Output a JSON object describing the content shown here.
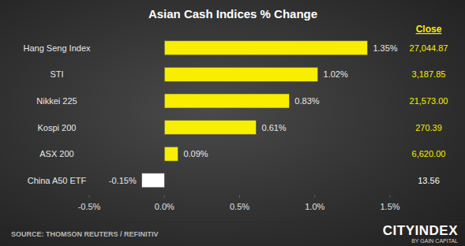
{
  "chart_data": {
    "type": "bar",
    "orientation": "horizontal",
    "title": "Asian Cash Indices % Change",
    "categories": [
      "Hang Seng Index",
      "STI",
      "Nikkei 225",
      "Kospi 200",
      "ASX 200",
      "China A50 ETF"
    ],
    "values": [
      1.35,
      1.02,
      0.83,
      0.61,
      0.09,
      -0.15
    ],
    "value_labels": [
      "1.35%",
      "1.02%",
      "0.83%",
      "0.61%",
      "0.09%",
      "-0.15%"
    ],
    "colors": [
      "#f7ee00",
      "#f7ee00",
      "#f7ee00",
      "#f7ee00",
      "#f7ee00",
      "#ffffff"
    ],
    "data_labels": true,
    "grid": false,
    "xlim": [
      -0.5,
      1.5
    ],
    "xticks": [
      {
        "value": -0.5,
        "label": "-0.5%"
      },
      {
        "value": 0,
        "label": "0.0%"
      },
      {
        "value": 0.5,
        "label": "0.5%"
      },
      {
        "value": 1,
        "label": "1.0%"
      },
      {
        "value": 1.5,
        "label": "1.5%"
      }
    ],
    "close_header": "Close",
    "close_values": [
      "27,044.87",
      "3,187.85",
      "21,573.00",
      "270.39",
      "6,620.00",
      "13.56"
    ],
    "source": "SOURCE: THOMSON REUTERS / REFINITIV",
    "brand": "CITYINDEX",
    "brand_sub": "BY GAIN CAPITAL"
  }
}
